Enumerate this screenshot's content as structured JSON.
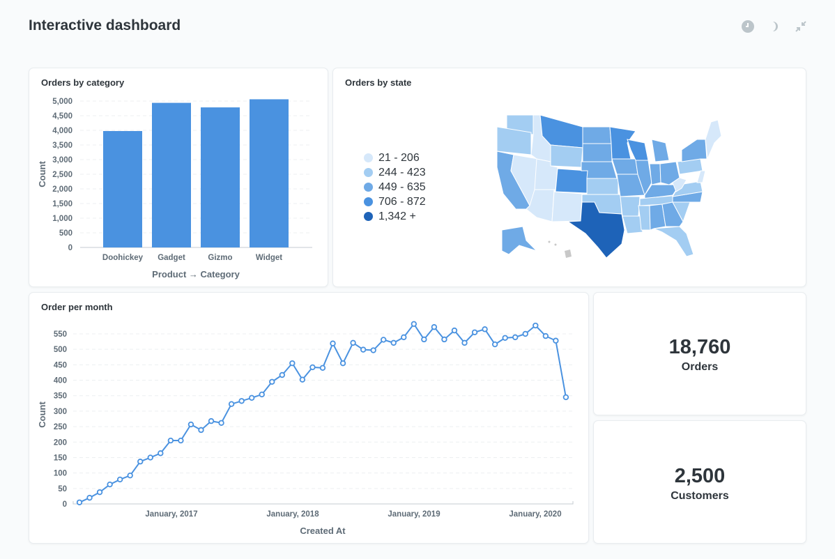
{
  "header": {
    "title": "Interactive dashboard",
    "icons": [
      "clock-icon",
      "moon-icon",
      "collapse-icon"
    ]
  },
  "cards": {
    "category": {
      "title": "Orders by category"
    },
    "state": {
      "title": "Orders by state",
      "legend": [
        {
          "label": "21 - 206",
          "color": "#d6e8fa"
        },
        {
          "label": "244 - 423",
          "color": "#a3cdf2"
        },
        {
          "label": "449 - 635",
          "color": "#6faae6"
        },
        {
          "label": "706 - 872",
          "color": "#4a92e0"
        },
        {
          "label": "1,342 +",
          "color": "#1e63b8"
        }
      ]
    },
    "month": {
      "title": "Order per month"
    },
    "orders": {
      "value": "18,760",
      "label": "Orders"
    },
    "customers": {
      "value": "2,500",
      "label": "Customers"
    }
  },
  "chart_data": [
    {
      "type": "bar",
      "title": "Orders by category",
      "categories": [
        "Doohickey",
        "Gadget",
        "Gizmo",
        "Widget"
      ],
      "values": [
        3976,
        4939,
        4784,
        5061
      ],
      "xlabel": "Product → Category",
      "ylabel": "Count",
      "ylim": [
        0,
        5000
      ],
      "yticks": [
        "0",
        "500",
        "1,000",
        "1,500",
        "2,000",
        "2,500",
        "3,000",
        "3,500",
        "4,000",
        "4,500",
        "5,000"
      ],
      "grid": true,
      "color": "#4a92e0"
    },
    {
      "type": "line",
      "title": "Order per month",
      "x_start": "April, 2016",
      "x_end": "April, 2020",
      "xticks": [
        "January, 2017",
        "January, 2018",
        "January, 2019",
        "January, 2020"
      ],
      "values": [
        5,
        20,
        38,
        63,
        79,
        92,
        137,
        150,
        164,
        205,
        205,
        257,
        239,
        268,
        262,
        323,
        333,
        343,
        354,
        395,
        417,
        455,
        402,
        442,
        440,
        519,
        455,
        521,
        499,
        497,
        531,
        521,
        539,
        582,
        532,
        572,
        532,
        561,
        521,
        555,
        565,
        516,
        537,
        539,
        550,
        577,
        543,
        528,
        345
      ],
      "xlabel": "Created At",
      "ylabel": "Count",
      "ylim": [
        0,
        550
      ],
      "yticks": [
        "0",
        "50",
        "100",
        "150",
        "200",
        "250",
        "300",
        "350",
        "400",
        "450",
        "500",
        "550"
      ],
      "grid": true,
      "color": "#4a92e0"
    }
  ]
}
